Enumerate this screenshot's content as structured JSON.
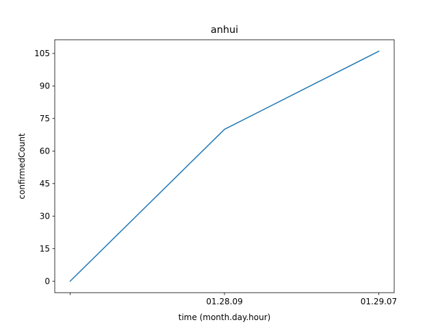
{
  "chart_data": {
    "type": "line",
    "title": "anhui",
    "xlabel": "time (month.day.hour)",
    "ylabel": "confirmedCount",
    "categories": [
      "",
      "01.28.09",
      "01.29.07"
    ],
    "series": [
      {
        "values": [
          0,
          70,
          106
        ],
        "color": "#1f77b4"
      }
    ],
    "ylim": [
      -5.3,
      111.3
    ],
    "yticks": [
      0,
      15,
      30,
      45,
      60,
      75,
      90,
      105
    ],
    "grid": false,
    "legend": "none"
  }
}
